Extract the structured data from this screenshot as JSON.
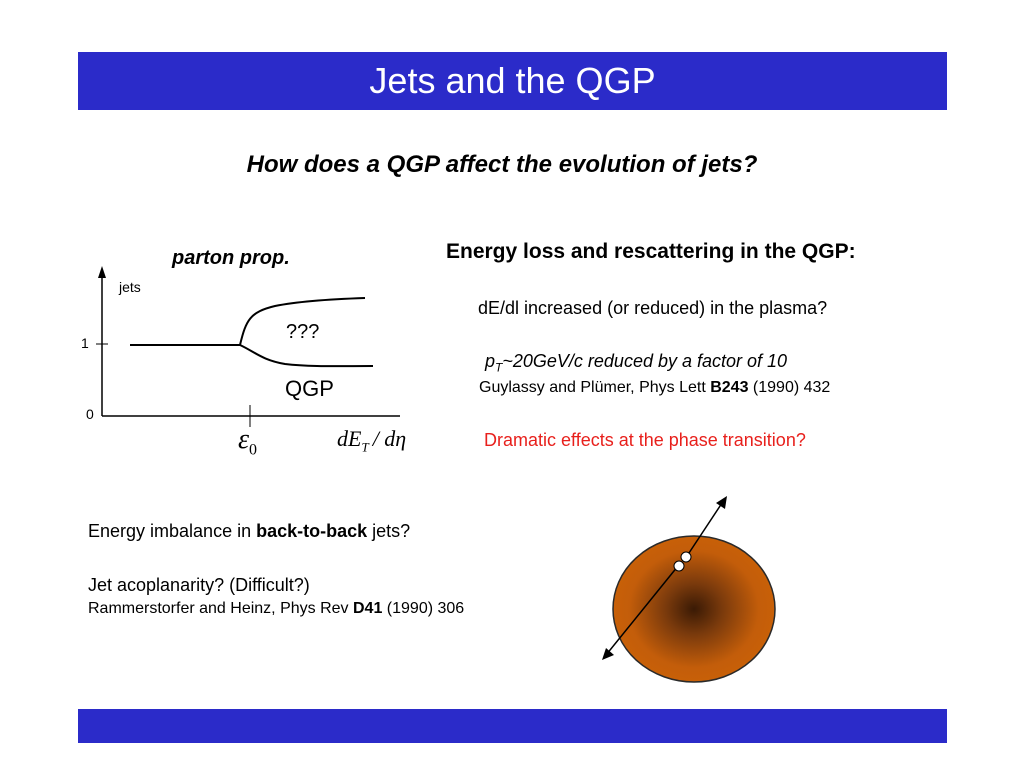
{
  "slide": {
    "title": "Jets and the QGP",
    "question": "How does a QGP affect the evolution of jets?"
  },
  "plot": {
    "title": "parton prop.",
    "y_label": "jets",
    "y_tick_1": "1",
    "y_tick_0": "0",
    "upper_label": "???",
    "lower_label": "QGP",
    "x_marker": "ε",
    "x_marker_sub": "0",
    "x_axis_label": "dE",
    "x_axis_label_sub": "T",
    "x_axis_label_rest": "/ dη"
  },
  "right": {
    "heading": "Energy loss and rescattering in the QGP:",
    "line1": "dE/dl increased (or reduced) in the plasma?",
    "line2_p": "p",
    "line2_sub": "T",
    "line2_rest": "~20GeV/c reduced by a factor of 10",
    "ref1_prefix": "Guylassy and Plümer, Phys Lett ",
    "ref1_bold": "B243",
    "ref1_suffix": " (1990) 432",
    "red_question": "Dramatic effects at the phase transition?"
  },
  "bottom": {
    "line1_prefix": "Energy imbalance in ",
    "line1_bold": "back-to-back",
    "line1_suffix": " jets?",
    "line2": "Jet acoplanarity? (Difficult?)",
    "ref2_prefix": "Rammerstorfer and Heinz, Phys Rev ",
    "ref2_bold": "D41",
    "ref2_suffix": " (1990) 306"
  },
  "colors": {
    "title_bar": "#2b2bc9",
    "red_text": "#e8201c",
    "fireball_outer": "#c35d0a",
    "fireball_center": "#3a1a05"
  }
}
